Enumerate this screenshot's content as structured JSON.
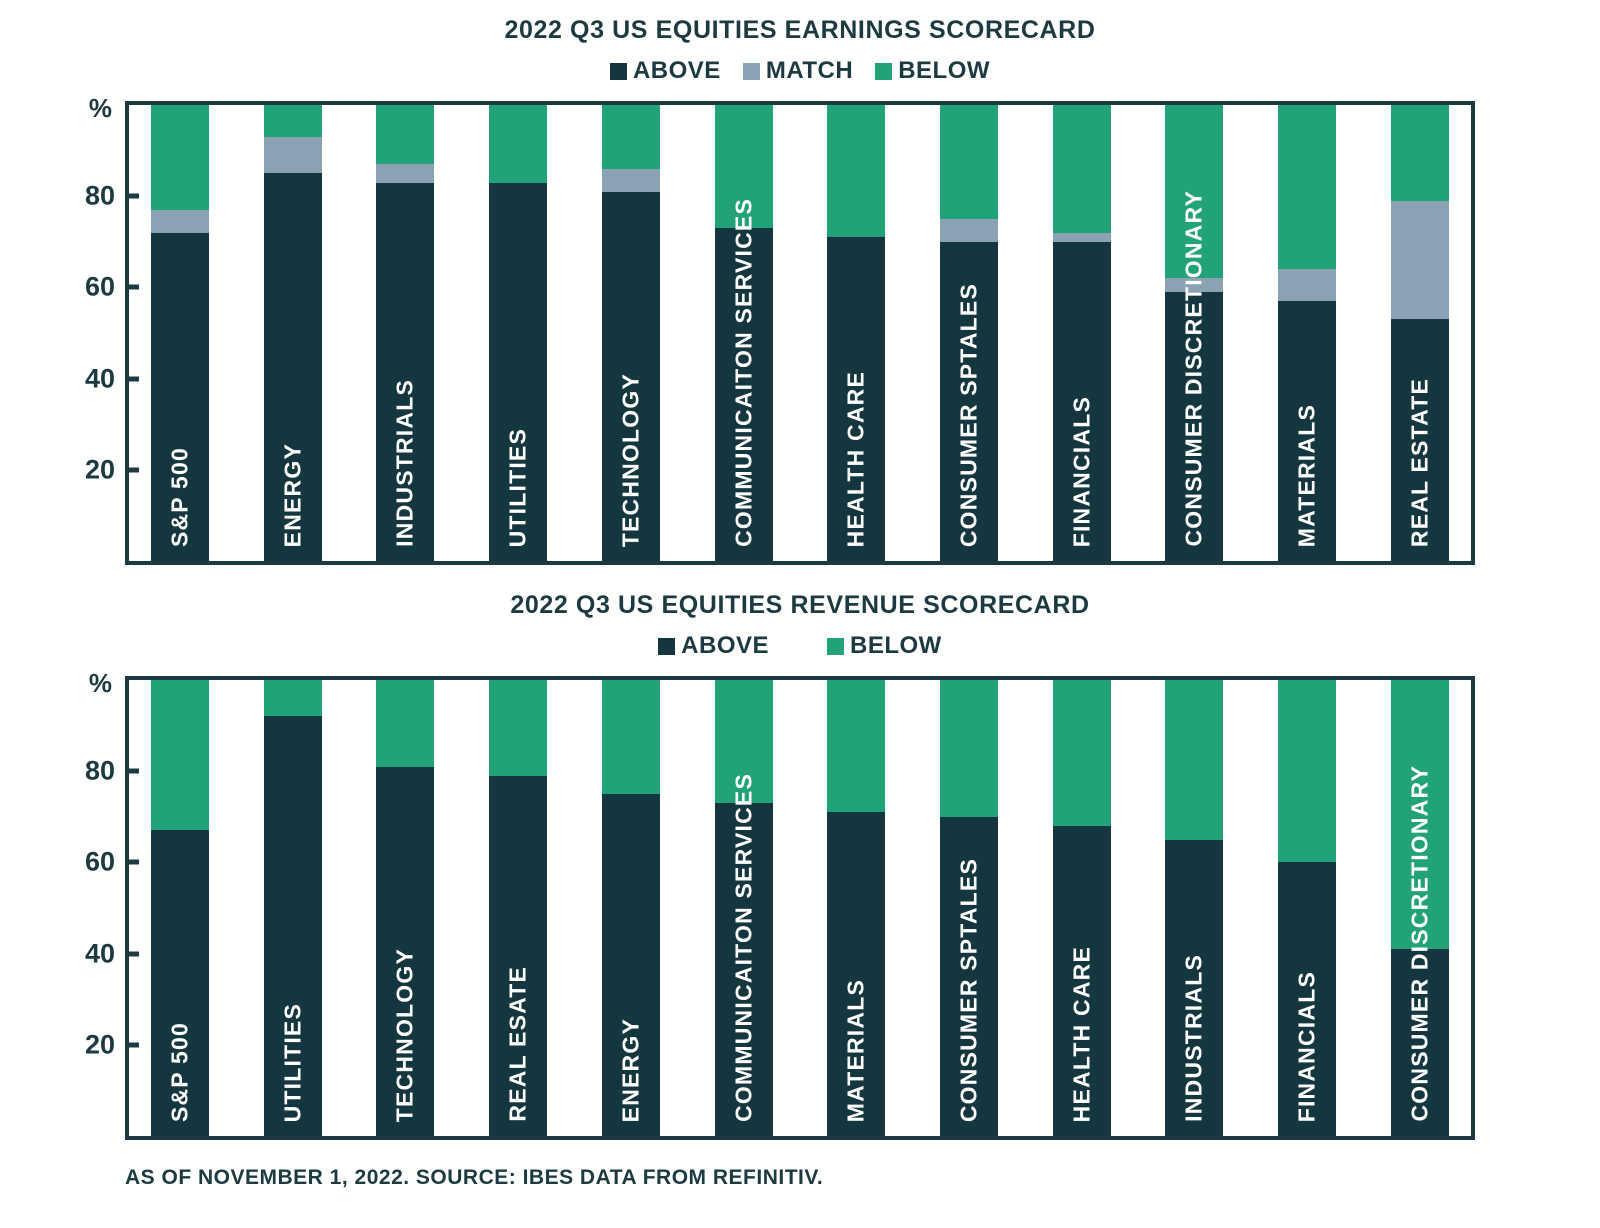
{
  "footer": {
    "text": "AS OF NOVEMBER 1, 2022. SOURCE: IBES DATA FROM REFINITIV."
  },
  "colors": {
    "above": "#14363e",
    "match": "#8aa2b2",
    "below": "#22a278",
    "frame": "#1c3a40",
    "text": "#1c3a40"
  },
  "chart_data": [
    {
      "type": "bar",
      "stacked": true,
      "title": "2022 Q3 US EQUITIES EARNINGS SCORECARD",
      "ylabel": "%",
      "ylim": [
        0,
        100
      ],
      "yticks": [
        20,
        40,
        60,
        80
      ],
      "grid": false,
      "legend_position": "top",
      "legend": [
        "ABOVE",
        "MATCH",
        "BELOW"
      ],
      "categories": [
        "S&P 500",
        "ENERGY",
        "INDUSTRIALS",
        "UTILITIES",
        "TECHNOLOGY",
        "COMMUNICAITON SERVICES",
        "HEALTH CARE",
        "CONSUMER SPTALES",
        "FINANCIALS",
        "CONSUMER DISCRETIONARY",
        "MATERIALS",
        "REAL ESTATE"
      ],
      "series": [
        {
          "name": "ABOVE",
          "values": [
            72,
            85,
            83,
            83,
            81,
            73,
            71,
            70,
            70,
            59,
            57,
            53
          ]
        },
        {
          "name": "MATCH",
          "values": [
            5,
            8,
            4,
            0,
            5,
            0,
            0,
            5,
            2,
            3,
            7,
            26
          ]
        },
        {
          "name": "BELOW",
          "values": [
            23,
            7,
            13,
            17,
            14,
            27,
            29,
            25,
            28,
            38,
            36,
            21
          ]
        }
      ]
    },
    {
      "type": "bar",
      "stacked": true,
      "title": "2022 Q3 US EQUITIES REVENUE SCORECARD",
      "ylabel": "%",
      "ylim": [
        0,
        100
      ],
      "yticks": [
        20,
        40,
        60,
        80
      ],
      "grid": false,
      "legend_position": "top",
      "legend": [
        "ABOVE",
        "BELOW"
      ],
      "categories": [
        "S&P 500",
        "UTILITIES",
        "TECHNOLOGY",
        "REAL ESATE",
        "ENERGY",
        "COMMUNICAITON SERVICES",
        "MATERIALS",
        "CONSUMER SPTALES",
        "HEALTH CARE",
        "INDUSTRIALS",
        "FINANCIALS",
        "CONSUMER DISCRETIONARY"
      ],
      "series": [
        {
          "name": "ABOVE",
          "values": [
            67,
            92,
            81,
            79,
            75,
            73,
            71,
            70,
            68,
            65,
            60,
            41
          ]
        },
        {
          "name": "BELOW",
          "values": [
            33,
            8,
            19,
            21,
            25,
            27,
            29,
            30,
            32,
            35,
            40,
            59
          ]
        }
      ]
    }
  ]
}
